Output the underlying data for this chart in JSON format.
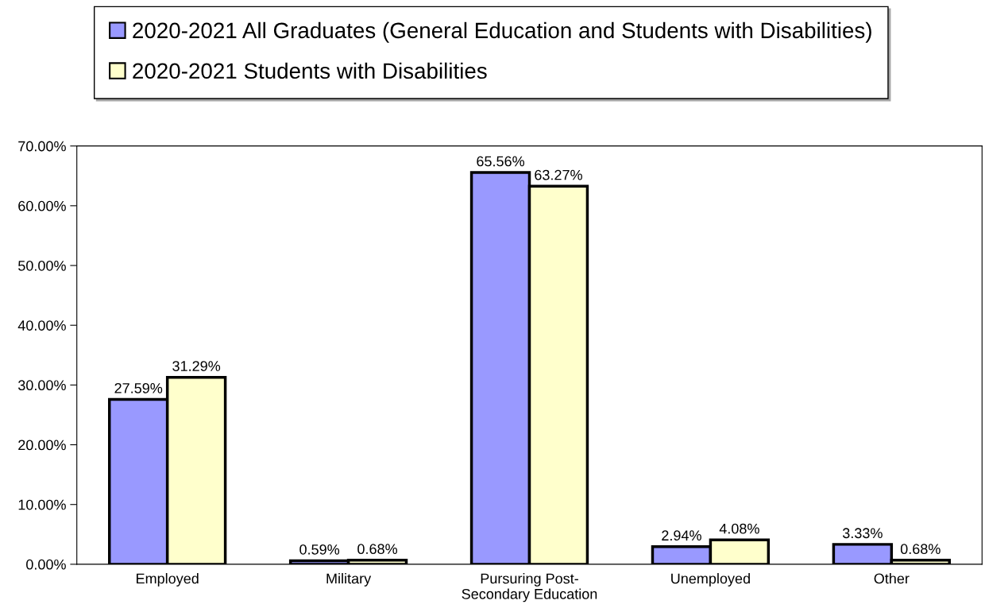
{
  "chart_data": {
    "type": "bar",
    "categories": [
      "Employed",
      "Military",
      "Pursuring Post-\nSecondary Education",
      "Unemployed",
      "Other"
    ],
    "series": [
      {
        "name": "2020-2021 All Graduates (General Education and Students with Disabilities)",
        "color": "#9999ff",
        "values": [
          27.59,
          0.59,
          65.56,
          2.94,
          3.33
        ],
        "value_labels": [
          "27.59%",
          "0.59%",
          "65.56%",
          "2.94%",
          "3.33%"
        ]
      },
      {
        "name": "2020-2021 Students with Disabilities",
        "color": "#ffffcc",
        "values": [
          31.29,
          0.68,
          63.27,
          4.08,
          0.68
        ],
        "value_labels": [
          "31.29%",
          "0.68%",
          "63.27%",
          "4.08%",
          "0.68%"
        ]
      }
    ],
    "ylim": [
      0,
      70
    ],
    "yticks": [
      {
        "value": 0,
        "label": "0.00%"
      },
      {
        "value": 10,
        "label": "10.00%"
      },
      {
        "value": 20,
        "label": "20.00%"
      },
      {
        "value": 30,
        "label": "30.00%"
      },
      {
        "value": 40,
        "label": "40.00%"
      },
      {
        "value": 50,
        "label": "50.00%"
      },
      {
        "value": 60,
        "label": "60.00%"
      },
      {
        "value": 70,
        "label": "70.00%"
      }
    ],
    "grid": false,
    "legend": "top"
  }
}
